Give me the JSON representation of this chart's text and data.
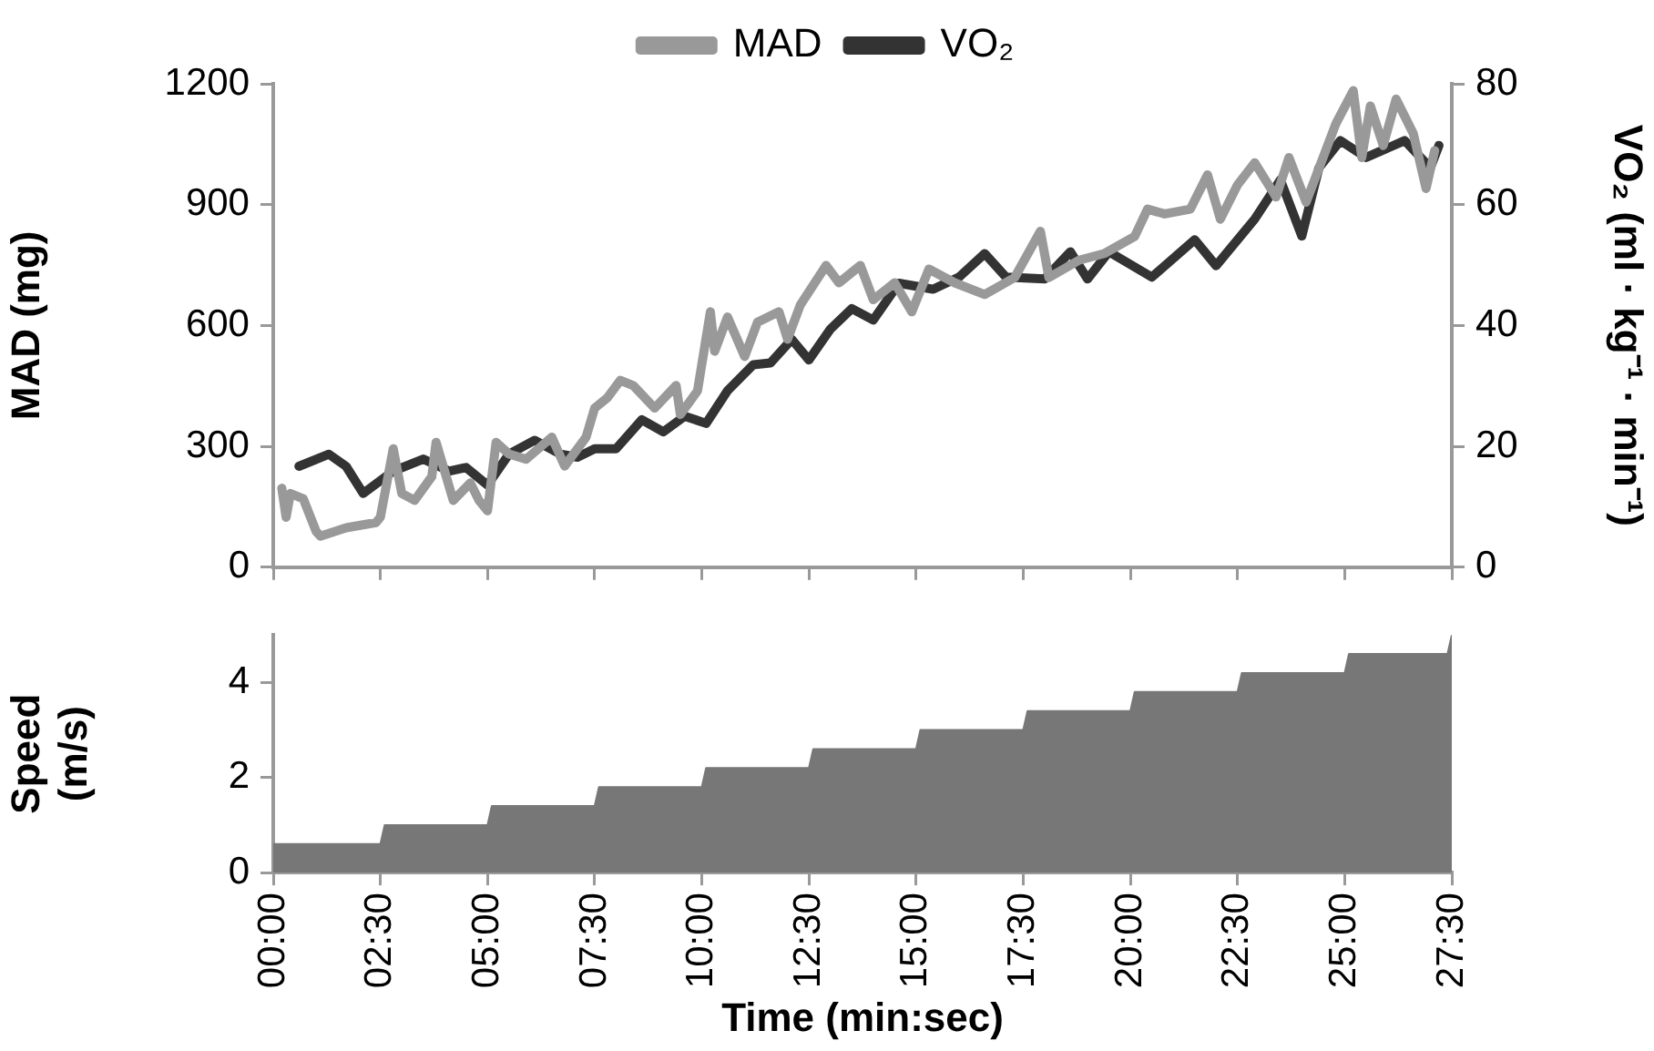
{
  "chart_data": [
    {
      "type": "line",
      "ylabel": "MAD (mg)",
      "y2label": "VO₂ (ml · kg⁻¹ · min⁻¹)",
      "legend": "top",
      "tick_labels": "y",
      "xlim": [
        0,
        27.5
      ],
      "xticks": [
        {
          "value": 0,
          "label": null
        },
        {
          "value": 2.5,
          "label": null
        },
        {
          "value": 5,
          "label": null
        },
        {
          "value": 7.5,
          "label": null
        },
        {
          "value": 10,
          "label": null
        },
        {
          "value": 12.5,
          "label": null
        },
        {
          "value": 15,
          "label": null
        },
        {
          "value": 17.5,
          "label": null
        },
        {
          "value": 20,
          "label": null
        },
        {
          "value": 22.5,
          "label": null
        },
        {
          "value": 25,
          "label": null
        },
        {
          "value": 27.5,
          "label": null
        }
      ],
      "ylim": [
        0,
        1200
      ],
      "yticks": [
        0,
        300,
        600,
        900,
        1200
      ],
      "y2lim": [
        0,
        80
      ],
      "y2ticks": [
        0,
        20,
        40,
        60,
        80
      ],
      "series": [
        {
          "name": "MAD",
          "color": "#999999",
          "x": [
            0.2,
            0.3,
            0.4,
            0.7,
            1.0,
            1.1,
            1.7,
            2.4,
            2.5,
            2.8,
            3.0,
            3.3,
            3.7,
            3.8,
            4.2,
            4.6,
            4.8,
            5.0,
            5.2,
            5.5,
            5.9,
            6.5,
            6.8,
            7.3,
            7.5,
            7.8,
            8.1,
            8.4,
            8.9,
            9.4,
            9.5,
            9.9,
            10.2,
            10.3,
            10.6,
            11.0,
            11.3,
            11.8,
            12.0,
            12.3,
            12.9,
            13.2,
            13.7,
            14.0,
            14.5,
            14.9,
            15.3,
            15.9,
            16.6,
            17.3,
            17.9,
            18.1,
            18.8,
            19.4,
            20.1,
            20.4,
            20.8,
            21.4,
            21.8,
            22.1,
            22.5,
            22.9,
            23.4,
            23.7,
            24.1,
            24.8,
            25.2,
            25.4,
            25.6,
            25.9,
            26.2,
            26.6,
            26.9,
            27.1
          ],
          "values": [
            196,
            124,
            183,
            170,
            89,
            77,
            98,
            111,
            124,
            294,
            183,
            166,
            225,
            310,
            166,
            209,
            166,
            140,
            310,
            281,
            268,
            323,
            251,
            323,
            395,
            421,
            464,
            451,
            395,
            451,
            379,
            438,
            634,
            536,
            621,
            523,
            608,
            634,
            566,
            651,
            749,
            706,
            749,
            664,
            706,
            634,
            740,
            706,
            677,
            719,
            834,
            719,
            762,
            779,
            821,
            889,
            877,
            889,
            974,
            864,
            949,
            1004,
            919,
            1017,
            906,
            1102,
            1183,
            1017,
            1145,
            1047,
            1162,
            1077,
            940,
            1034
          ]
        },
        {
          "name": "VO₂",
          "color": "#333333",
          "axis": "y2",
          "x": [
            0.6,
            1.3,
            1.7,
            2.1,
            2.8,
            3.5,
            4.1,
            4.5,
            5.0,
            5.5,
            6.1,
            6.7,
            7.1,
            7.5,
            8.0,
            8.6,
            9.1,
            9.6,
            10.1,
            10.6,
            11.2,
            11.6,
            12.1,
            12.5,
            13.0,
            13.5,
            14.0,
            14.6,
            15.4,
            16.0,
            16.6,
            17.1,
            18.0,
            18.6,
            19.0,
            19.5,
            20.5,
            21.5,
            22.0,
            22.9,
            23.5,
            24.0,
            24.4,
            24.9,
            25.5,
            26.4,
            27.0,
            27.2
          ],
          "values": [
            16.7,
            18.7,
            16.7,
            12.2,
            15.9,
            17.9,
            15.9,
            16.5,
            13.6,
            18.7,
            21,
            18.7,
            18.2,
            19.6,
            19.6,
            24.4,
            22.4,
            25,
            23.8,
            29.2,
            33.5,
            33.8,
            37.7,
            34.3,
            39.4,
            42.8,
            40.9,
            47,
            46,
            48,
            51.9,
            48,
            47.7,
            52.2,
            47.7,
            52.2,
            48,
            54.2,
            49.9,
            57.6,
            64.1,
            54.8,
            66.1,
            70.6,
            67.8,
            70.6,
            66.1,
            69.8
          ]
        }
      ]
    },
    {
      "type": "area",
      "ylabel": "Speed (m/s)",
      "xlabel": "Time (min:sec)",
      "xlim": [
        0,
        27.5
      ],
      "xticks": [
        {
          "value": 0,
          "label": "00:00"
        },
        {
          "value": 2.5,
          "label": "02:30"
        },
        {
          "value": 5,
          "label": "05:00"
        },
        {
          "value": 7.5,
          "label": "07:30"
        },
        {
          "value": 10,
          "label": "10:00"
        },
        {
          "value": 12.5,
          "label": "12:30"
        },
        {
          "value": 15,
          "label": "15:00"
        },
        {
          "value": 17.5,
          "label": "17:30"
        },
        {
          "value": 20,
          "label": "20:00"
        },
        {
          "value": 22.5,
          "label": "22:30"
        },
        {
          "value": 25,
          "label": "25:00"
        },
        {
          "value": 27.5,
          "label": "27:30"
        }
      ],
      "ylim": [
        0,
        5
      ],
      "yticks": [
        0,
        2,
        4
      ],
      "series": [
        {
          "color": "#777777",
          "x": [
            0,
            2.5,
            2.6,
            5,
            5.1,
            7.5,
            7.6,
            10,
            10.1,
            12.5,
            12.6,
            15,
            15.1,
            17.5,
            17.6,
            20,
            20.1,
            22.5,
            22.6,
            25,
            25.1,
            27.4,
            27.5
          ],
          "values": [
            0.6,
            0.6,
            1.0,
            1.0,
            1.4,
            1.4,
            1.8,
            1.8,
            2.2,
            2.2,
            2.6,
            2.6,
            3.0,
            3.0,
            3.4,
            3.4,
            3.8,
            3.8,
            4.2,
            4.2,
            4.6,
            4.6,
            5.0
          ]
        }
      ]
    }
  ]
}
